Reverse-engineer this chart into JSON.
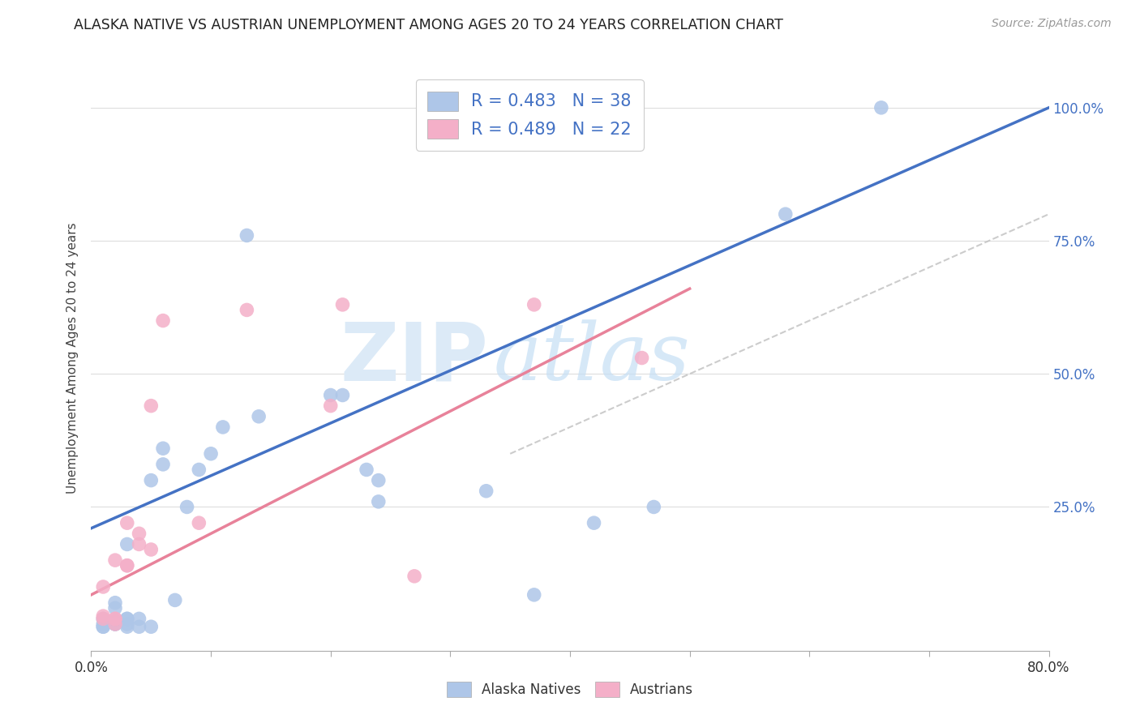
{
  "title": "ALASKA NATIVE VS AUSTRIAN UNEMPLOYMENT AMONG AGES 20 TO 24 YEARS CORRELATION CHART",
  "source": "Source: ZipAtlas.com",
  "ylabel": "Unemployment Among Ages 20 to 24 years",
  "xlim": [
    0.0,
    0.8
  ],
  "ylim": [
    -0.02,
    1.08
  ],
  "xticks": [
    0.0,
    0.1,
    0.2,
    0.3,
    0.4,
    0.5,
    0.6,
    0.7,
    0.8
  ],
  "xticklabels": [
    "0.0%",
    "",
    "",
    "",
    "",
    "",
    "",
    "",
    "80.0%"
  ],
  "yticks": [
    0.25,
    0.5,
    0.75,
    1.0
  ],
  "yticklabels": [
    "25.0%",
    "50.0%",
    "75.0%",
    "100.0%"
  ],
  "alaska_color": "#aec6e8",
  "austrian_color": "#f4afc8",
  "alaska_line_color": "#4472c4",
  "austrian_line_color": "#e8829a",
  "ref_line_color": "#c0c0c0",
  "alaska_R": 0.483,
  "alaska_N": 38,
  "austrian_R": 0.489,
  "austrian_N": 22,
  "watermark_zip": "ZIP",
  "watermark_atlas": "atlas",
  "alaska_line_x0": 0.0,
  "alaska_line_y0": 0.21,
  "alaska_line_x1": 0.8,
  "alaska_line_y1": 1.0,
  "austrian_line_x0": 0.0,
  "austrian_line_y0": 0.085,
  "austrian_line_x1": 0.5,
  "austrian_line_y1": 0.66,
  "ref_line_x0": 0.35,
  "ref_line_y0": 0.35,
  "ref_line_x1": 0.8,
  "ref_line_y1": 0.8,
  "alaska_x": [
    0.01,
    0.01,
    0.01,
    0.01,
    0.02,
    0.02,
    0.02,
    0.02,
    0.02,
    0.03,
    0.03,
    0.03,
    0.03,
    0.03,
    0.04,
    0.04,
    0.05,
    0.05,
    0.06,
    0.06,
    0.07,
    0.08,
    0.09,
    0.1,
    0.11,
    0.13,
    0.14,
    0.2,
    0.21,
    0.23,
    0.24,
    0.24,
    0.33,
    0.37,
    0.42,
    0.47,
    0.58,
    0.66
  ],
  "alaska_y": [
    0.025,
    0.025,
    0.03,
    0.04,
    0.03,
    0.03,
    0.035,
    0.06,
    0.07,
    0.025,
    0.03,
    0.04,
    0.04,
    0.18,
    0.025,
    0.04,
    0.025,
    0.3,
    0.33,
    0.36,
    0.075,
    0.25,
    0.32,
    0.35,
    0.4,
    0.76,
    0.42,
    0.46,
    0.46,
    0.32,
    0.26,
    0.3,
    0.28,
    0.085,
    0.22,
    0.25,
    0.8,
    1.0
  ],
  "austrian_x": [
    0.01,
    0.01,
    0.01,
    0.02,
    0.02,
    0.02,
    0.02,
    0.03,
    0.03,
    0.03,
    0.04,
    0.04,
    0.05,
    0.05,
    0.06,
    0.09,
    0.13,
    0.2,
    0.21,
    0.27,
    0.37,
    0.46
  ],
  "austrian_y": [
    0.04,
    0.045,
    0.1,
    0.03,
    0.04,
    0.04,
    0.15,
    0.14,
    0.22,
    0.14,
    0.18,
    0.2,
    0.44,
    0.17,
    0.6,
    0.22,
    0.62,
    0.44,
    0.63,
    0.12,
    0.63,
    0.53
  ]
}
